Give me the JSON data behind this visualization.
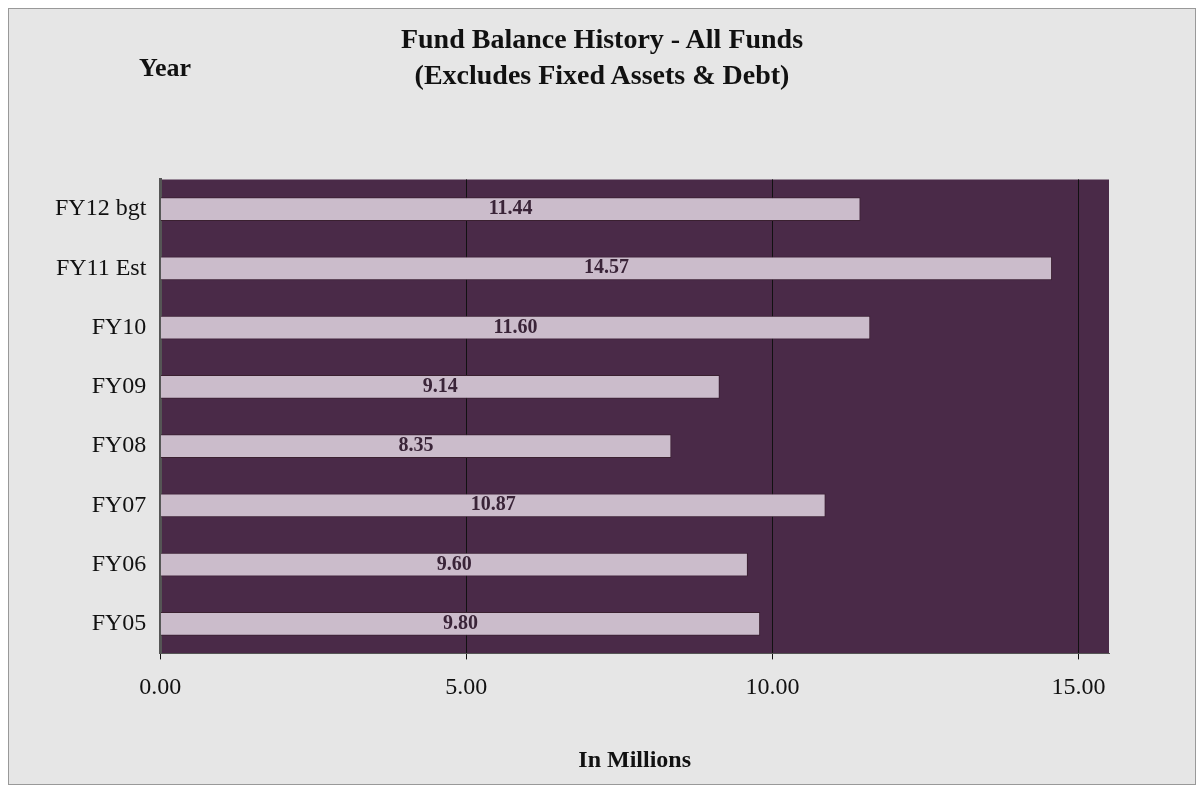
{
  "chart_data": {
    "type": "bar",
    "orientation": "horizontal",
    "title": "Fund Balance History - All Funds\n(Excludes Fixed Assets & Debt)",
    "ylabel": "Year",
    "xlabel": "In Millions",
    "categories": [
      "FY12 bgt",
      "FY11 Est",
      "FY10",
      "FY09",
      "FY08",
      "FY07",
      "FY06",
      "FY05"
    ],
    "values": [
      11.44,
      14.57,
      11.6,
      9.14,
      8.35,
      10.87,
      9.6,
      9.8
    ],
    "value_labels": [
      "11.44",
      "14.57",
      "11.60",
      "9.14",
      "8.35",
      "10.87",
      "9.60",
      "9.80"
    ],
    "color": "#cbbccb",
    "grid": "x",
    "xlim": [
      0,
      15.5
    ],
    "xticks": [
      {
        "value": 0,
        "label": "0.00"
      },
      {
        "value": 5,
        "label": "5.00"
      },
      {
        "value": 10,
        "label": "10.00"
      },
      {
        "value": 15,
        "label": "15.00"
      }
    ]
  }
}
